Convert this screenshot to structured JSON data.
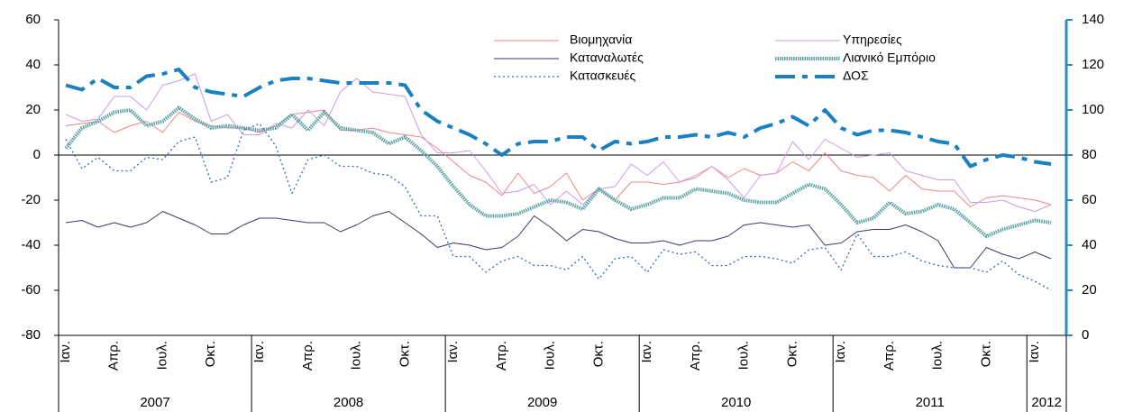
{
  "chart_data": {
    "type": "line",
    "categories": [
      "Ιαν.",
      null,
      null,
      "Απρ.",
      null,
      null,
      "Ιουλ.",
      null,
      null,
      "Οκτ.",
      null,
      null,
      "Ιαν.",
      null,
      null,
      "Απρ.",
      null,
      null,
      "Ιουλ.",
      null,
      null,
      "Οκτ.",
      null,
      null,
      "Ιαν.",
      null,
      null,
      "Απρ.",
      null,
      null,
      "Ιουλ.",
      null,
      null,
      "Οκτ.",
      null,
      null,
      "Ιαν.",
      null,
      null,
      "Απρ.",
      null,
      null,
      "Ιουλ.",
      null,
      null,
      "Οκτ.",
      null,
      null,
      "Ιαν.",
      null,
      null,
      "Απρ.",
      null,
      null,
      "Ιουλ.",
      null,
      null,
      "Οκτ.",
      null,
      null,
      "Ιαν.",
      null
    ],
    "years": [
      "2007",
      "2008",
      "2009",
      "2010",
      "2011",
      "2012"
    ],
    "ylim": [
      -80,
      60
    ],
    "yticks": [
      -80,
      -60,
      -40,
      -20,
      0,
      20,
      40,
      60
    ],
    "y2lim": [
      0,
      140
    ],
    "y2ticks": [
      0,
      20,
      40,
      60,
      80,
      100,
      120,
      140
    ],
    "y2_color": "#2a8bc8",
    "series": [
      {
        "name": "Βιομηχανία",
        "color": "#f08585",
        "style": "solid",
        "values": [
          13,
          14,
          15,
          10,
          13,
          15,
          10,
          19,
          15,
          13,
          12,
          12,
          10,
          13,
          18,
          19,
          20,
          11,
          11,
          12,
          10,
          9,
          8,
          3,
          -3,
          -9,
          -12,
          -18,
          -8,
          -17,
          -14,
          -8,
          -20,
          -15,
          -20,
          -12,
          -12,
          -13,
          -12,
          -10,
          -5,
          -10,
          -6,
          -9,
          -8,
          -3,
          -7,
          1,
          -7,
          -9,
          -10,
          -16,
          -9,
          -15,
          -16,
          -16,
          -23,
          -19,
          -18,
          -19,
          -20,
          -22
        ]
      },
      {
        "name": "Υπηρεσίες",
        "color": "#cc99ee",
        "style": "solid",
        "values": [
          18,
          15,
          16,
          26,
          26,
          20,
          31,
          33,
          36,
          15,
          18,
          9,
          9,
          14,
          12,
          20,
          13,
          28,
          34,
          28,
          27,
          26,
          9,
          1,
          1,
          2,
          -7,
          -17,
          -16,
          -13,
          -22,
          -16,
          -22,
          -15,
          -14,
          -4,
          -9,
          -3,
          -12,
          -9,
          -5,
          -11,
          -19,
          -9,
          -8,
          6,
          -2,
          7,
          3,
          -1,
          0,
          1,
          -7,
          -9,
          -11,
          -11,
          -21,
          -21,
          -20,
          -23,
          -25,
          -22
        ]
      },
      {
        "name": "Καταναλωτές",
        "color": "#3a3a6e",
        "style": "solid",
        "values": [
          -30,
          -29,
          -32,
          -30,
          -32,
          -30,
          -25,
          -28,
          -31,
          -35,
          -35,
          -31,
          -28,
          -28,
          -29,
          -30,
          -30,
          -34,
          -31,
          -27,
          -25,
          -30,
          -35,
          -41,
          -39,
          -40,
          -42,
          -41,
          -36,
          -27,
          -32,
          -38,
          -33,
          -34,
          -37,
          -39,
          -39,
          -38,
          -40,
          -38,
          -38,
          -36,
          -31,
          -30,
          -31,
          -32,
          -31,
          -40,
          -39,
          -34,
          -33,
          -33,
          -31,
          -34,
          -38,
          -50,
          -50,
          -41,
          -44,
          -46,
          -43,
          -46
        ]
      },
      {
        "name": "Λιανικό Εμπόριο",
        "color": "#5ba3a3",
        "style": "hatched",
        "values": [
          3,
          12,
          15,
          19,
          20,
          13,
          15,
          21,
          16,
          12,
          13,
          12,
          11,
          12,
          18,
          11,
          19,
          12,
          11,
          10,
          5,
          8,
          2,
          -5,
          -14,
          -22,
          -27,
          -27,
          -26,
          -23,
          -20,
          -21,
          -24,
          -15,
          -20,
          -24,
          -22,
          -19,
          -19,
          -15,
          -16,
          -17,
          -20,
          -21,
          -21,
          -17,
          -13,
          -15,
          -22,
          -30,
          -28,
          -21,
          -26,
          -25,
          -22,
          -24,
          -30,
          -36,
          -33,
          -31,
          -29,
          -30
        ]
      },
      {
        "name": "Κατασκευές",
        "color": "#3366cc",
        "style": "dotted",
        "values": [
          7,
          -6,
          -1,
          -7,
          -7,
          -1,
          -2,
          6,
          8,
          -12,
          -10,
          11,
          14,
          4,
          -17,
          -2,
          0,
          -5,
          -5,
          -8,
          -9,
          -14,
          -27,
          -27,
          -45,
          -45,
          -52,
          -47,
          -45,
          -49,
          -49,
          -51,
          -45,
          -55,
          -46,
          -45,
          -52,
          -42,
          -44,
          -43,
          -49,
          -49,
          -45,
          -45,
          -46,
          -48,
          -42,
          -41,
          -51,
          -35,
          -45,
          -45,
          -43,
          -47,
          -49,
          -50,
          -50,
          -52,
          -47,
          -53,
          -56,
          -60
        ]
      },
      {
        "name": "ΔΟΣ",
        "color": "#1a80c0",
        "style": "dashed",
        "axis": "y2",
        "values": [
          111,
          109,
          114,
          110,
          110,
          115,
          116,
          118,
          110,
          108,
          107,
          106,
          110,
          113,
          114,
          114,
          113,
          112,
          112,
          112,
          112,
          111,
          100,
          95,
          92,
          89,
          85,
          80,
          85,
          86,
          86,
          88,
          88,
          82,
          86,
          85,
          86,
          88,
          88,
          89,
          88,
          90,
          88,
          92,
          94,
          97,
          93,
          100,
          92,
          89,
          91,
          91,
          90,
          88,
          86,
          85,
          75,
          78,
          80,
          79,
          77,
          76
        ]
      }
    ]
  }
}
